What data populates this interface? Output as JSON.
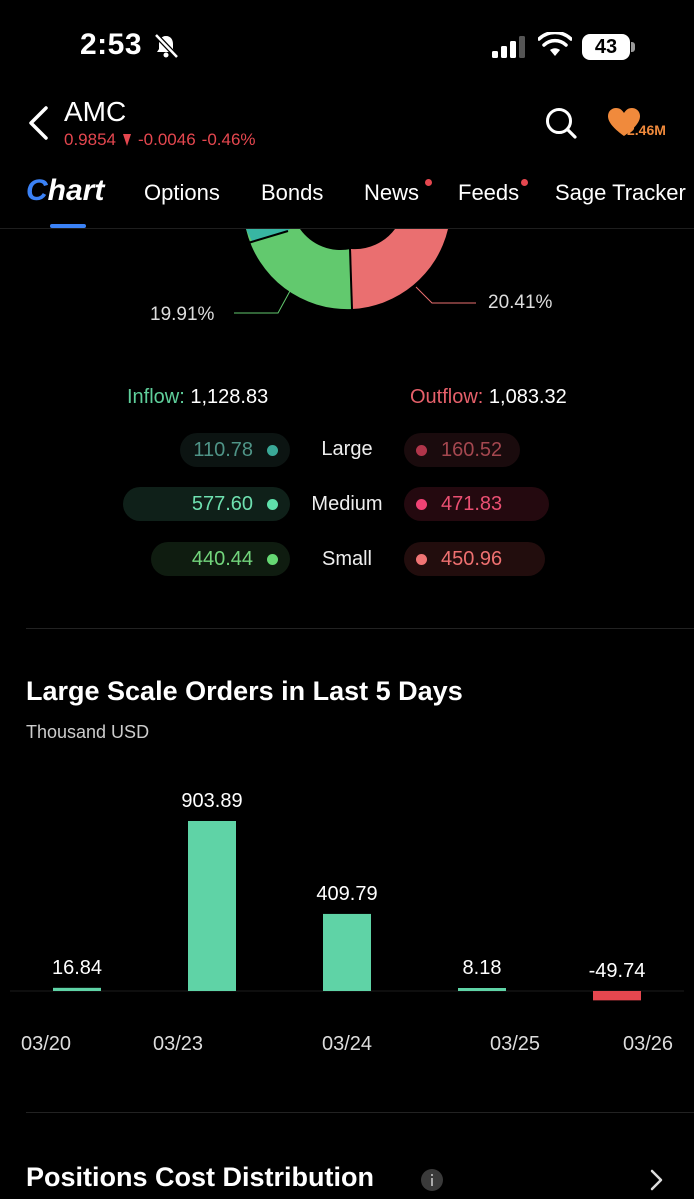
{
  "status_bar": {
    "time": "2:53",
    "battery": "43"
  },
  "header": {
    "ticker": "AMC",
    "price": "0.9854",
    "change": "-0.0046",
    "change_pct": "-0.46%",
    "watch_count": "2.46M"
  },
  "tabs": [
    {
      "label": "Chart",
      "active": true,
      "dot": false
    },
    {
      "label": "Options",
      "active": false,
      "dot": false
    },
    {
      "label": "Bonds",
      "active": false,
      "dot": false
    },
    {
      "label": "News",
      "active": false,
      "dot": true
    },
    {
      "label": "Feeds",
      "active": false,
      "dot": true
    },
    {
      "label": "Sage Tracker",
      "active": false,
      "dot": false
    }
  ],
  "donut": {
    "left_pct": "19.91%",
    "right_pct": "20.41%"
  },
  "flow": {
    "inflow_label": "Inflow:",
    "inflow_value": "1,128.83",
    "outflow_label": "Outflow:",
    "outflow_value": "1,083.32",
    "rows": [
      {
        "size": "Large",
        "in": "110.78",
        "out": "160.52"
      },
      {
        "size": "Medium",
        "in": "577.60",
        "out": "471.83"
      },
      {
        "size": "Small",
        "in": "440.44",
        "out": "450.96"
      }
    ]
  },
  "orders_section": {
    "title": "Large Scale Orders in Last 5 Days",
    "unit": "Thousand USD"
  },
  "chart_data": {
    "type": "bar",
    "categories": [
      "03/20",
      "03/23",
      "03/24",
      "03/25",
      "03/26"
    ],
    "values": [
      16.84,
      903.89,
      409.79,
      8.18,
      -49.74
    ],
    "value_labels": [
      "16.84",
      "903.89",
      "409.79",
      "8.18",
      "-49.74"
    ],
    "title": "Large Scale Orders in Last 5 Days",
    "ylabel": "Thousand USD",
    "colors": {
      "positive": "#5fd3a6",
      "negative": "#e5474f"
    }
  },
  "positions_section": {
    "title": "Positions Cost Distribution"
  },
  "colors": {
    "accent_blue": "#3b82f6",
    "inflow_green": "#5fcf9b",
    "outflow_red": "#e5474f",
    "watch_orange": "#f08a3c"
  }
}
